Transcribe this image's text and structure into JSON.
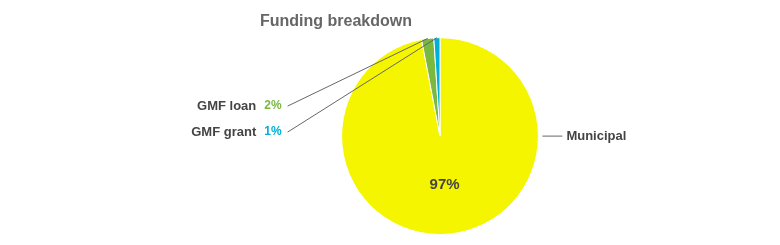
{
  "chart_data": {
    "type": "pie",
    "title": "Funding breakdown",
    "categories": [
      "Municipal",
      "GMF loan",
      "GMF grant"
    ],
    "values": [
      97,
      2,
      1
    ],
    "value_labels": [
      "97%",
      "2%",
      "1%"
    ],
    "colors": [
      "#f5f500",
      "#7ab840",
      "#00b0d8"
    ],
    "data_labels": true
  }
}
